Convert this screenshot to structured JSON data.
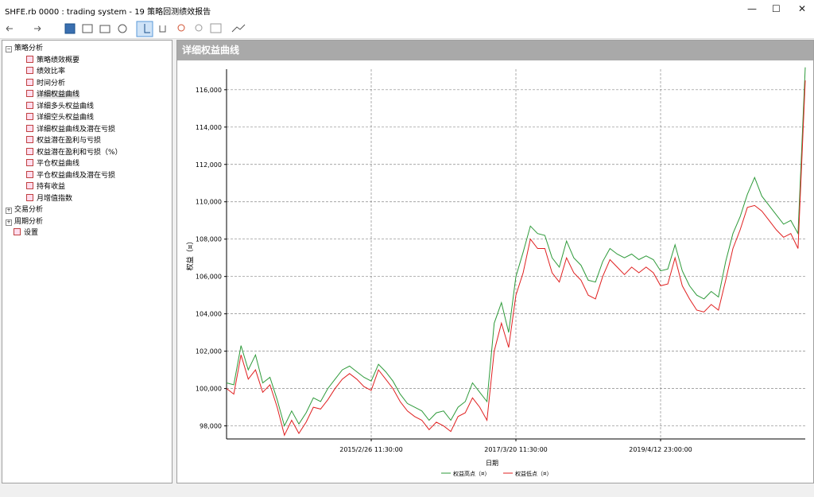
{
  "window": {
    "title": "SHFE.rb 0000 : trading system - 19 策略回测绩效报告"
  },
  "tree": {
    "groups": [
      {
        "label": "策略分析",
        "items": [
          "策略绩效概要",
          "绩效比率",
          "时间分析",
          "详细权益曲线",
          "详细多头权益曲线",
          "详细空头权益曲线",
          "详细权益曲线及潜在亏损",
          "权益潜在盈利与亏损",
          "权益潜在盈利和亏损（%）",
          "平仓权益曲线",
          "平仓权益曲线及潜在亏损",
          "持有收益",
          "月增值指数"
        ]
      },
      {
        "label": "交易分析"
      },
      {
        "label": "周期分析"
      },
      {
        "label": "设置"
      }
    ]
  },
  "panel": {
    "title": "详细权益曲线"
  },
  "chart_data": {
    "type": "line",
    "x_label": "日期",
    "y_label": "权益（¤）",
    "categories": [
      null,
      null,
      null,
      null,
      null,
      null,
      null,
      null,
      null,
      null,
      null,
      null,
      null,
      null,
      null,
      null,
      null,
      null,
      null,
      null,
      "2015/2/26 11:30:00",
      null,
      null,
      null,
      null,
      null,
      null,
      null,
      null,
      null,
      null,
      null,
      null,
      null,
      null,
      null,
      null,
      null,
      null,
      null,
      "2017/3/20 11:30:00",
      null,
      null,
      null,
      null,
      null,
      null,
      null,
      null,
      null,
      null,
      null,
      null,
      null,
      null,
      null,
      null,
      null,
      null,
      null,
      "2019/4/12 23:00:00",
      null,
      null,
      null,
      null,
      null,
      null,
      null,
      null,
      null,
      null,
      null,
      null,
      null,
      null,
      null,
      null,
      null,
      null,
      null,
      null
    ],
    "series": [
      {
        "name": "权益高点（¤）",
        "color": "#2e9a3a",
        "values": [
          100300,
          100200,
          102300,
          101000,
          101800,
          100300,
          100600,
          99400,
          98000,
          98800,
          98100,
          98700,
          99500,
          99300,
          100000,
          100500,
          101000,
          101200,
          100900,
          100600,
          100400,
          101300,
          100900,
          100400,
          99700,
          99200,
          99000,
          98800,
          98300,
          98700,
          98800,
          98300,
          99000,
          99300,
          100300,
          99800,
          99300,
          103500,
          104600,
          103000,
          106000,
          107300,
          108700,
          108300,
          108200,
          107000,
          106500,
          107900,
          107000,
          106600,
          105800,
          105700,
          106800,
          107500,
          107200,
          107000,
          107200,
          106900,
          107100,
          106900,
          106300,
          106400,
          107700,
          106300,
          105500,
          105000,
          104800,
          105200,
          104900,
          106800,
          108300,
          109200,
          110400,
          111300,
          110300,
          109800,
          109300,
          108800,
          109000,
          108300,
          117200
        ]
      },
      {
        "name": "权益低点（¤）",
        "color": "#e02020",
        "values": [
          100000,
          99700,
          101800,
          100500,
          101000,
          99800,
          100200,
          99000,
          97500,
          98300,
          97600,
          98200,
          99000,
          98900,
          99400,
          100000,
          100500,
          100800,
          100500,
          100100,
          99900,
          101000,
          100500,
          100000,
          99300,
          98800,
          98500,
          98300,
          97800,
          98200,
          98000,
          97700,
          98500,
          98700,
          99500,
          99000,
          98300,
          102000,
          103500,
          102200,
          105000,
          106200,
          108000,
          107500,
          107500,
          106200,
          105700,
          107000,
          106200,
          105800,
          105000,
          104800,
          106000,
          106900,
          106500,
          106100,
          106500,
          106200,
          106500,
          106200,
          105500,
          105600,
          107000,
          105500,
          104800,
          104200,
          104100,
          104500,
          104200,
          105800,
          107500,
          108500,
          109700,
          109800,
          109500,
          109000,
          108500,
          108100,
          108300,
          107500,
          116500
        ]
      }
    ],
    "ylim": [
      97300,
      117100
    ],
    "yticks": [
      {
        "value": 98000,
        "label": "98,000"
      },
      {
        "value": 100000,
        "label": "100,000"
      },
      {
        "value": 102000,
        "label": "102,000"
      },
      {
        "value": 104000,
        "label": "104,000"
      },
      {
        "value": 106000,
        "label": "106,000"
      },
      {
        "value": 108000,
        "label": "108,000"
      },
      {
        "value": 110000,
        "label": "110,000"
      },
      {
        "value": 112000,
        "label": "112,000"
      },
      {
        "value": 114000,
        "label": "114,000"
      },
      {
        "value": 116000,
        "label": "116,000"
      }
    ],
    "grid": true
  }
}
